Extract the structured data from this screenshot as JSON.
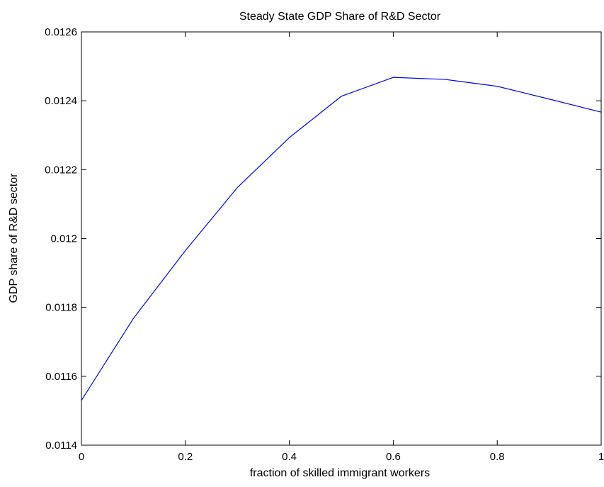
{
  "chart_data": {
    "type": "line",
    "title": "Steady State GDP Share of R&D Sector",
    "xlabel": "fraction of skilled immigrant workers",
    "ylabel": "GDP share of R&D sector",
    "xlim": [
      0,
      1
    ],
    "ylim": [
      0.0114,
      0.0126
    ],
    "xticks": [
      0,
      0.2,
      0.4,
      0.6,
      0.8,
      1
    ],
    "xtick_labels": [
      "0",
      "0.2",
      "0.4",
      "0.6",
      "0.8",
      "1"
    ],
    "yticks": [
      0.0114,
      0.0116,
      0.0118,
      0.012,
      0.0122,
      0.0124,
      0.0126
    ],
    "ytick_labels": [
      "0.0114",
      "0.0116",
      "0.0118",
      "0.012",
      "0.0122",
      "0.0124",
      "0.0126"
    ],
    "grid": false,
    "legend": "none",
    "series": [
      {
        "color": "#0000ff",
        "x": [
          0,
          0.1,
          0.2,
          0.3,
          0.4,
          0.5,
          0.6,
          0.7,
          0.8,
          0.9,
          1.0
        ],
        "y": [
          0.01153,
          0.011768,
          0.011965,
          0.012148,
          0.012293,
          0.012413,
          0.012468,
          0.012462,
          0.012442,
          0.012405,
          0.012367
        ]
      }
    ]
  }
}
